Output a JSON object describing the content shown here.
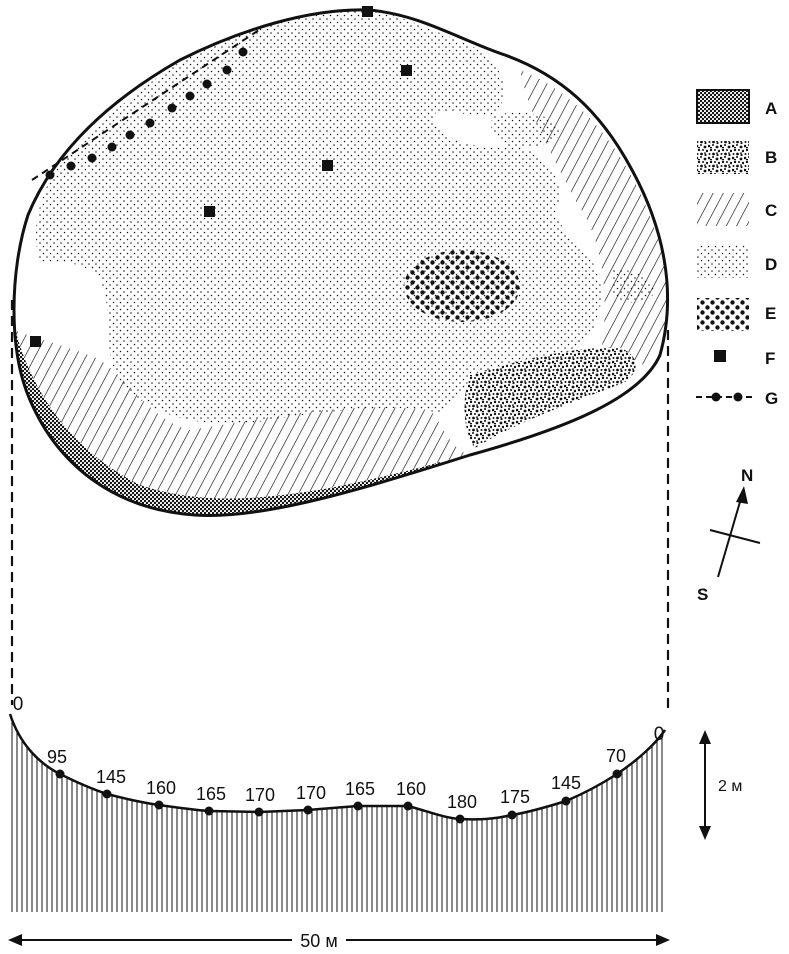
{
  "legend": {
    "items": [
      {
        "key": "A",
        "pattern": "dense-dots"
      },
      {
        "key": "B",
        "pattern": "speckled"
      },
      {
        "key": "C",
        "pattern": "diagonal-hatch"
      },
      {
        "key": "D",
        "pattern": "fine-dots"
      },
      {
        "key": "E",
        "pattern": "large-dots"
      },
      {
        "key": "F",
        "pattern": "black-square-marker"
      },
      {
        "key": "G",
        "pattern": "dashed-line-with-dots"
      }
    ]
  },
  "compass": {
    "north": "N",
    "south": "S"
  },
  "profile": {
    "depths": [
      "0",
      "95",
      "145",
      "160",
      "165",
      "170",
      "170",
      "165",
      "160",
      "180",
      "175",
      "145",
      "70",
      "0"
    ],
    "scale_label": "2 м"
  },
  "scale_bar": {
    "label": "50 м"
  },
  "colors": {
    "ink": "#111111",
    "paper": "#ffffff"
  }
}
